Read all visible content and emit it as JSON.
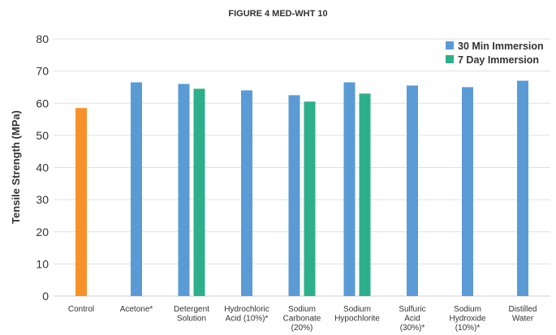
{
  "chart_data": {
    "type": "bar",
    "title": "FIGURE 4 MED-WHT 10",
    "ylabel": "Tensile Strength (MPa)",
    "xlabel": "",
    "ylim": [
      0,
      80
    ],
    "yticks": [
      0,
      10,
      20,
      30,
      40,
      50,
      60,
      70,
      80
    ],
    "grid": true,
    "legend_position": "top-right",
    "categories": [
      [
        "Control"
      ],
      [
        "Acetone*"
      ],
      [
        "Detergent",
        "Solution"
      ],
      [
        "Hydrochloric",
        "Acid (10%)*"
      ],
      [
        "Sodium",
        "Carbonate",
        "(20%)"
      ],
      [
        "Sodium",
        "Hypochlorite"
      ],
      [
        "Sulfuric",
        "Acid",
        "(30%)*"
      ],
      [
        "Sodium",
        "Hydroxide",
        "(10%)*"
      ],
      [
        "Distilled",
        "Water"
      ]
    ],
    "series": [
      {
        "name": "",
        "color": "#f7922b",
        "values": [
          58.5,
          null,
          null,
          null,
          null,
          null,
          null,
          null,
          null
        ]
      },
      {
        "name": "30 Min Immersion",
        "color": "#5b9bd5",
        "values": [
          null,
          66.5,
          66,
          64,
          62.5,
          66.5,
          65.5,
          65,
          67
        ]
      },
      {
        "name": "7 Day Immersion",
        "color": "#2eaf8c",
        "values": [
          null,
          null,
          64.5,
          null,
          60.5,
          63,
          null,
          null,
          null
        ]
      }
    ]
  }
}
